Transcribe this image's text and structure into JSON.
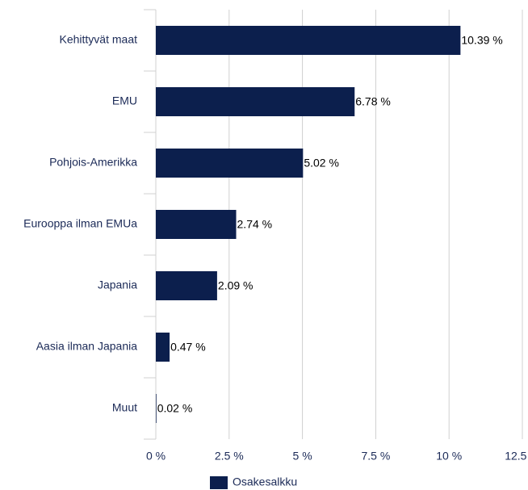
{
  "chart_data": {
    "type": "bar",
    "orientation": "horizontal",
    "categories": [
      "Kehittyvät maat",
      "EMU",
      "Pohjois-Amerikka",
      "Eurooppa ilman EMUa",
      "Japania",
      "Aasia ilman Japania",
      "Muut"
    ],
    "series": [
      {
        "name": "Osakesalkku",
        "color": "#0c1f4d",
        "values": [
          10.39,
          6.78,
          5.02,
          2.74,
          2.09,
          0.47,
          0.02
        ],
        "value_labels": [
          "10.39 %",
          "6.78 %",
          "5.02 %",
          "2.74 %",
          "2.09 %",
          "0.47 %",
          "0.02 %"
        ]
      }
    ],
    "xlim": [
      0,
      12.5
    ],
    "xticks": [
      {
        "value": 0,
        "label": "0 %"
      },
      {
        "value": 2.5,
        "label": "2.5 %"
      },
      {
        "value": 5,
        "label": "5 %"
      },
      {
        "value": 7.5,
        "label": "7.5 %"
      },
      {
        "value": 10,
        "label": "10 %"
      },
      {
        "value": 12.5,
        "label": "12.5 %"
      }
    ],
    "grid": true,
    "legend": "bottom"
  }
}
